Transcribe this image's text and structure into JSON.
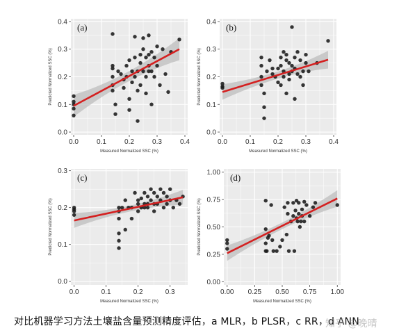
{
  "caption": "对比机器学习方法土壤盐含量预测精度评估，a MLR，b PLSR，c RR，d ANN",
  "watermark": "知乎 @晚晴",
  "colors": {
    "panel_bg": "#ebebeb",
    "points": "#1a1a1a",
    "fit_line": "#d42020",
    "band": "#bdbdbd"
  },
  "chart_data": [
    {
      "type": "scatter",
      "panel": "(a)",
      "xlabel": "Measured Normalized SSC (%)",
      "ylabel": "Predicted Normalized SSC (%)",
      "xlim": [
        -0.01,
        0.41
      ],
      "ylim": [
        -0.01,
        0.41
      ],
      "xticks": [
        "0.0",
        "0.1",
        "0.2",
        "0.3",
        "0.4"
      ],
      "yticks": [
        "0.0",
        "0.1",
        "0.2",
        "0.3",
        "0.4"
      ],
      "grid": true,
      "fit": {
        "x0": 0.0,
        "y0": 0.095,
        "x1": 0.38,
        "y1": 0.3,
        "band0": 0.04,
        "bandMid": 0.018,
        "band1": 0.04
      },
      "x": [
        0.0,
        0.0,
        0.0,
        0.0,
        0.0,
        0.14,
        0.14,
        0.14,
        0.14,
        0.14,
        0.14,
        0.15,
        0.15,
        0.16,
        0.17,
        0.18,
        0.18,
        0.19,
        0.19,
        0.2,
        0.2,
        0.2,
        0.21,
        0.21,
        0.22,
        0.22,
        0.22,
        0.23,
        0.23,
        0.23,
        0.24,
        0.24,
        0.24,
        0.25,
        0.25,
        0.25,
        0.26,
        0.26,
        0.26,
        0.27,
        0.27,
        0.27,
        0.27,
        0.28,
        0.28,
        0.28,
        0.29,
        0.29,
        0.3,
        0.3,
        0.31,
        0.32,
        0.33,
        0.34,
        0.35,
        0.38
      ],
      "y": [
        0.13,
        0.11,
        0.1,
        0.085,
        0.06,
        0.355,
        0.24,
        0.23,
        0.2,
        0.17,
        0.15,
        0.1,
        0.065,
        0.22,
        0.21,
        0.19,
        0.16,
        0.2,
        0.24,
        0.26,
        0.08,
        0.12,
        0.18,
        0.22,
        0.345,
        0.27,
        0.2,
        0.04,
        0.22,
        0.15,
        0.25,
        0.28,
        0.17,
        0.34,
        0.3,
        0.22,
        0.27,
        0.2,
        0.14,
        0.35,
        0.28,
        0.24,
        0.22,
        0.29,
        0.22,
        0.1,
        0.27,
        0.2,
        0.24,
        0.31,
        0.17,
        0.3,
        0.21,
        0.145,
        0.29,
        0.335
      ]
    },
    {
      "type": "scatter",
      "panel": "(b)",
      "xlabel": "Measured Normalized SSC (%)",
      "ylabel": "Predicted Normalized SSC (%)",
      "xlim": [
        -0.01,
        0.41
      ],
      "ylim": [
        -0.01,
        0.41
      ],
      "xticks": [
        "0.0",
        "0.1",
        "0.2",
        "0.3",
        "0.4"
      ],
      "yticks": [
        "0.0",
        "0.1",
        "0.2",
        "0.3",
        "0.4"
      ],
      "grid": true,
      "fit": {
        "x0": 0.0,
        "y0": 0.145,
        "x1": 0.38,
        "y1": 0.262,
        "band0": 0.028,
        "bandMid": 0.013,
        "band1": 0.032
      },
      "x": [
        0.0,
        0.0,
        0.0,
        0.14,
        0.14,
        0.14,
        0.14,
        0.15,
        0.15,
        0.15,
        0.16,
        0.17,
        0.18,
        0.18,
        0.19,
        0.2,
        0.2,
        0.21,
        0.21,
        0.21,
        0.22,
        0.22,
        0.22,
        0.23,
        0.23,
        0.23,
        0.24,
        0.24,
        0.24,
        0.25,
        0.25,
        0.25,
        0.26,
        0.26,
        0.26,
        0.27,
        0.27,
        0.28,
        0.28,
        0.29,
        0.29,
        0.3,
        0.3,
        0.31,
        0.34,
        0.38
      ],
      "y": [
        0.175,
        0.165,
        0.16,
        0.27,
        0.24,
        0.2,
        0.17,
        0.14,
        0.09,
        0.05,
        0.22,
        0.26,
        0.23,
        0.21,
        0.2,
        0.18,
        0.23,
        0.27,
        0.24,
        0.17,
        0.29,
        0.22,
        0.2,
        0.28,
        0.26,
        0.14,
        0.25,
        0.21,
        0.19,
        0.38,
        0.24,
        0.22,
        0.27,
        0.23,
        0.12,
        0.29,
        0.21,
        0.26,
        0.2,
        0.22,
        0.17,
        0.28,
        0.25,
        0.22,
        0.25,
        0.33
      ]
    },
    {
      "type": "scatter",
      "panel": "(c)",
      "xlabel": "Measured Normalized SSC (%)",
      "ylabel": "Predicted Normalized SSC (%)",
      "xlim": [
        -0.01,
        0.355
      ],
      "ylim": [
        -0.01,
        0.305
      ],
      "xticks": [
        "0.0",
        "0.1",
        "0.2",
        "0.3"
      ],
      "yticks": [
        "0.0",
        "0.1",
        "0.2",
        "0.3"
      ],
      "grid": true,
      "fit": {
        "x0": 0.0,
        "y0": 0.165,
        "x1": 0.34,
        "y1": 0.228,
        "band0": 0.02,
        "bandMid": 0.008,
        "band1": 0.02
      },
      "x": [
        0.0,
        0.0,
        0.0,
        0.0,
        0.14,
        0.14,
        0.14,
        0.14,
        0.14,
        0.14,
        0.15,
        0.16,
        0.16,
        0.17,
        0.18,
        0.18,
        0.19,
        0.2,
        0.2,
        0.2,
        0.21,
        0.21,
        0.22,
        0.22,
        0.22,
        0.23,
        0.23,
        0.23,
        0.24,
        0.24,
        0.25,
        0.25,
        0.25,
        0.26,
        0.26,
        0.27,
        0.27,
        0.28,
        0.28,
        0.29,
        0.29,
        0.3,
        0.3,
        0.31,
        0.32,
        0.33,
        0.34
      ],
      "y": [
        0.2,
        0.195,
        0.19,
        0.18,
        0.2,
        0.19,
        0.17,
        0.13,
        0.11,
        0.09,
        0.2,
        0.22,
        0.14,
        0.2,
        0.2,
        0.17,
        0.24,
        0.21,
        0.19,
        0.22,
        0.2,
        0.225,
        0.24,
        0.21,
        0.2,
        0.23,
        0.21,
        0.2,
        0.25,
        0.22,
        0.24,
        0.21,
        0.19,
        0.23,
        0.21,
        0.25,
        0.22,
        0.24,
        0.2,
        0.23,
        0.21,
        0.25,
        0.22,
        0.2,
        0.22,
        0.21,
        0.23
      ]
    },
    {
      "type": "scatter",
      "panel": "(d)",
      "xlabel": "Measured Normalized SSC (%)",
      "ylabel": "Predicted Normalized SSC (%)",
      "xlim": [
        -0.03,
        1.03
      ],
      "ylim": [
        -0.03,
        1.03
      ],
      "xticks": [
        "0.00",
        "0.25",
        "0.50",
        "0.75",
        "1.00"
      ],
      "yticks": [
        "0.00",
        "0.25",
        "0.50",
        "0.75",
        "1.00"
      ],
      "grid": true,
      "fit": {
        "x0": 0.0,
        "y0": 0.26,
        "x1": 1.0,
        "y1": 0.76,
        "band0": 0.07,
        "bandMid": 0.03,
        "band1": 0.075
      },
      "x": [
        0.0,
        0.0,
        0.0,
        0.35,
        0.35,
        0.35,
        0.35,
        0.36,
        0.37,
        0.38,
        0.4,
        0.41,
        0.42,
        0.45,
        0.48,
        0.5,
        0.52,
        0.54,
        0.55,
        0.55,
        0.56,
        0.58,
        0.6,
        0.6,
        0.61,
        0.62,
        0.63,
        0.63,
        0.64,
        0.65,
        0.65,
        0.66,
        0.67,
        0.68,
        0.68,
        0.7,
        0.7,
        0.72,
        0.75,
        0.78,
        0.8,
        1.0
      ],
      "y": [
        0.38,
        0.35,
        0.3,
        0.74,
        0.48,
        0.35,
        0.28,
        0.28,
        0.4,
        0.42,
        0.7,
        0.38,
        0.28,
        0.28,
        0.32,
        0.38,
        0.68,
        0.43,
        0.62,
        0.72,
        0.28,
        0.55,
        0.6,
        0.72,
        0.28,
        0.65,
        0.58,
        0.74,
        0.55,
        0.62,
        0.72,
        0.5,
        0.55,
        0.6,
        0.66,
        0.55,
        0.73,
        0.7,
        0.6,
        0.68,
        0.72,
        0.7
      ]
    }
  ]
}
